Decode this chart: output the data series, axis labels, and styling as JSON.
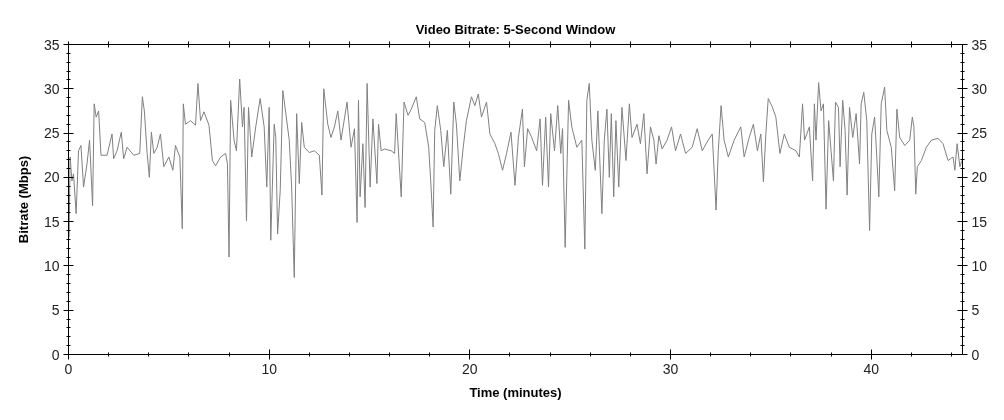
{
  "chart_data": {
    "type": "line",
    "title": "Video Bitrate: 5-Second Window",
    "xlabel": "Time (minutes)",
    "ylabel": "Bitrate (Mbps)",
    "xlim": [
      0,
      44.55
    ],
    "ylim": [
      0,
      35
    ],
    "y2lim": [
      0,
      35
    ],
    "xticks": [
      0,
      {
        "value": 2,
        "label": null
      },
      {
        "value": 4,
        "label": null
      },
      {
        "value": 6,
        "label": null
      },
      {
        "value": 8,
        "label": null
      },
      10,
      {
        "value": 12,
        "label": null
      },
      {
        "value": 14,
        "label": null
      },
      {
        "value": 16,
        "label": null
      },
      {
        "value": 18,
        "label": null
      },
      20,
      {
        "value": 22,
        "label": null
      },
      {
        "value": 24,
        "label": null
      },
      {
        "value": 26,
        "label": null
      },
      {
        "value": 28,
        "label": null
      },
      30,
      {
        "value": 32,
        "label": null
      },
      {
        "value": 34,
        "label": null
      },
      {
        "value": 36,
        "label": null
      },
      {
        "value": 38,
        "label": null
      },
      40,
      {
        "value": 42,
        "label": null
      },
      {
        "value": 44,
        "label": null
      }
    ],
    "yticks": [
      0,
      {
        "value": 1,
        "label": null
      },
      {
        "value": 2,
        "label": null
      },
      {
        "value": 3,
        "label": null
      },
      {
        "value": 4,
        "label": null
      },
      5,
      {
        "value": 6,
        "label": null
      },
      {
        "value": 7,
        "label": null
      },
      {
        "value": 8,
        "label": null
      },
      {
        "value": 9,
        "label": null
      },
      10,
      {
        "value": 11,
        "label": null
      },
      {
        "value": 12,
        "label": null
      },
      {
        "value": 13,
        "label": null
      },
      {
        "value": 14,
        "label": null
      },
      15,
      {
        "value": 16,
        "label": null
      },
      {
        "value": 17,
        "label": null
      },
      {
        "value": 18,
        "label": null
      },
      {
        "value": 19,
        "label": null
      },
      20,
      {
        "value": 21,
        "label": null
      },
      {
        "value": 22,
        "label": null
      },
      {
        "value": 23,
        "label": null
      },
      {
        "value": 24,
        "label": null
      },
      25,
      {
        "value": 26,
        "label": null
      },
      {
        "value": 27,
        "label": null
      },
      {
        "value": 28,
        "label": null
      },
      {
        "value": 29,
        "label": null
      },
      30,
      {
        "value": 31,
        "label": null
      },
      {
        "value": 32,
        "label": null
      },
      {
        "value": 33,
        "label": null
      },
      {
        "value": 34,
        "label": null
      },
      35
    ],
    "y2ticks": [
      0,
      {
        "value": 1,
        "label": null
      },
      {
        "value": 2,
        "label": null
      },
      {
        "value": 3,
        "label": null
      },
      {
        "value": 4,
        "label": null
      },
      5,
      {
        "value": 6,
        "label": null
      },
      {
        "value": 7,
        "label": null
      },
      {
        "value": 8,
        "label": null
      },
      {
        "value": 9,
        "label": null
      },
      10,
      {
        "value": 11,
        "label": null
      },
      {
        "value": 12,
        "label": null
      },
      {
        "value": 13,
        "label": null
      },
      {
        "value": 14,
        "label": null
      },
      15,
      {
        "value": 16,
        "label": null
      },
      {
        "value": 17,
        "label": null
      },
      {
        "value": 18,
        "label": null
      },
      {
        "value": 19,
        "label": null
      },
      20,
      {
        "value": 21,
        "label": null
      },
      {
        "value": 22,
        "label": null
      },
      {
        "value": 23,
        "label": null
      },
      {
        "value": 24,
        "label": null
      },
      25,
      {
        "value": 26,
        "label": null
      },
      {
        "value": 27,
        "label": null
      },
      {
        "value": 28,
        "label": null
      },
      {
        "value": 29,
        "label": null
      },
      30,
      {
        "value": 31,
        "label": null
      },
      {
        "value": 32,
        "label": null
      },
      {
        "value": 33,
        "label": null
      },
      {
        "value": 34,
        "label": null
      },
      35
    ],
    "grid": false,
    "x": [
      0.03,
      0.08,
      0.17,
      0.25,
      0.38,
      0.5,
      0.62,
      0.75,
      0.92,
      1.05,
      1.2,
      1.28,
      1.38,
      1.5,
      1.62,
      1.92,
      2.17,
      2.25,
      2.42,
      2.63,
      2.75,
      2.92,
      3.25,
      3.55,
      3.68,
      3.78,
      3.92,
      4.03,
      4.13,
      4.25,
      4.42,
      4.58,
      4.75,
      5.0,
      5.2,
      5.33,
      5.55,
      5.67,
      5.72,
      5.83,
      6.08,
      6.33,
      6.45,
      6.58,
      6.75,
      7.0,
      7.17,
      7.33,
      7.58,
      7.83,
      7.92,
      8.0,
      8.08,
      8.25,
      8.37,
      8.53,
      8.67,
      8.75,
      8.87,
      8.97,
      9.13,
      9.33,
      9.55,
      9.75,
      9.88,
      10.0,
      10.08,
      10.25,
      10.33,
      10.42,
      10.55,
      10.68,
      10.83,
      11.0,
      11.12,
      11.25,
      11.37,
      11.5,
      11.62,
      11.75,
      12.0,
      12.25,
      12.5,
      12.63,
      12.72,
      12.92,
      13.08,
      13.25,
      13.42,
      13.58,
      13.88,
      14.08,
      14.25,
      14.38,
      14.45,
      14.53,
      14.67,
      14.78,
      14.88,
      15.03,
      15.17,
      15.37,
      15.45,
      15.58,
      15.75,
      16.08,
      16.25,
      16.33,
      16.58,
      16.72,
      16.92,
      17.08,
      17.33,
      17.5,
      17.75,
      17.95,
      18.05,
      18.17,
      18.25,
      18.38,
      18.55,
      18.7,
      18.88,
      19.05,
      19.2,
      19.33,
      19.5,
      19.67,
      19.83,
      20.08,
      20.25,
      20.42,
      20.58,
      20.83,
      21.0,
      21.25,
      21.42,
      21.63,
      21.83,
      22.05,
      22.25,
      22.42,
      22.62,
      22.72,
      22.88,
      23.08,
      23.33,
      23.5,
      23.62,
      23.78,
      23.92,
      24.03,
      24.22,
      24.38,
      24.53,
      24.62,
      24.75,
      24.92,
      25.08,
      25.33,
      25.58,
      25.73,
      25.83,
      25.95,
      26.08,
      26.25,
      26.38,
      26.58,
      26.7,
      26.83,
      26.95,
      27.05,
      27.17,
      27.28,
      27.42,
      27.58,
      27.78,
      27.95,
      28.08,
      28.33,
      28.5,
      28.67,
      28.83,
      29.0,
      29.17,
      29.28,
      29.42,
      29.58,
      29.83,
      30.05,
      30.25,
      30.5,
      30.75,
      31.08,
      31.33,
      31.58,
      31.88,
      32.08,
      32.27,
      32.38,
      32.52,
      32.67,
      32.88,
      33.17,
      33.5,
      33.67,
      33.92,
      34.13,
      34.33,
      34.5,
      34.63,
      34.75,
      34.87,
      35.08,
      35.25,
      35.45,
      35.67,
      35.92,
      36.25,
      36.42,
      36.58,
      36.68,
      36.92,
      37.08,
      37.17,
      37.25,
      37.38,
      37.5,
      37.62,
      37.75,
      37.88,
      38.0,
      38.12,
      38.22,
      38.37,
      38.45,
      38.58,
      38.7,
      38.8,
      38.92,
      39.08,
      39.25,
      39.42,
      39.5,
      39.63,
      39.78,
      39.92,
      40.03,
      40.17,
      40.28,
      40.38,
      40.5,
      40.67,
      40.78,
      41.0,
      41.17,
      41.28,
      41.42,
      41.67,
      41.92,
      42.05,
      42.13,
      42.22,
      42.3,
      42.5,
      42.75,
      43.0,
      43.33,
      43.58,
      43.83,
      44.08,
      44.17,
      44.28,
      44.42,
      44.52
    ],
    "series": [
      {
        "color": "#808080",
        "values": [
          13.2,
          22.3,
          19.6,
          20.4,
          15.9,
          23.0,
          23.6,
          18.9,
          21.5,
          24.2,
          16.8,
          28.3,
          26.8,
          27.5,
          22.5,
          22.5,
          24.9,
          22.1,
          23.0,
          25.1,
          22.1,
          23.4,
          22.5,
          22.7,
          29.1,
          27.5,
          22.7,
          20.0,
          25.1,
          22.7,
          23.4,
          24.9,
          21.2,
          22.3,
          20.8,
          23.6,
          22.3,
          14.2,
          28.3,
          26.0,
          26.4,
          25.9,
          30.6,
          26.4,
          27.4,
          25.9,
          21.9,
          21.3,
          22.3,
          22.7,
          21.5,
          11.0,
          28.7,
          24.2,
          23.0,
          31.1,
          25.7,
          27.9,
          15.1,
          27.9,
          22.3,
          25.7,
          28.9,
          25.7,
          18.9,
          27.9,
          12.9,
          26.0,
          24.5,
          13.6,
          18.5,
          29.8,
          27.2,
          24.2,
          18.9,
          8.7,
          27.2,
          19.3,
          26.2,
          23.4,
          22.8,
          23.0,
          22.5,
          18.0,
          30.0,
          26.0,
          24.5,
          25.7,
          27.5,
          24.2,
          28.5,
          23.4,
          25.5,
          14.9,
          28.7,
          17.8,
          23.8,
          16.6,
          30.6,
          18.9,
          26.6,
          19.3,
          26.0,
          23.0,
          23.2,
          23.0,
          22.7,
          27.2,
          17.8,
          28.5,
          27.0,
          27.7,
          29.1,
          26.6,
          26.2,
          23.4,
          19.6,
          14.4,
          25.3,
          28.1,
          25.3,
          21.2,
          25.3,
          18.1,
          28.5,
          26.0,
          19.6,
          23.4,
          26.4,
          29.1,
          28.1,
          29.4,
          26.8,
          28.5,
          24.9,
          23.8,
          22.7,
          20.8,
          22.7,
          25.1,
          19.1,
          24.5,
          27.7,
          21.2,
          25.5,
          24.5,
          23.0,
          26.6,
          19.1,
          26.8,
          18.9,
          27.2,
          23.0,
          28.1,
          22.7,
          25.5,
          12.1,
          28.7,
          25.7,
          23.4,
          24.2,
          11.9,
          28.7,
          30.6,
          24.2,
          20.8,
          27.5,
          15.9,
          24.2,
          27.7,
          20.0,
          27.2,
          17.8,
          26.4,
          18.9,
          27.9,
          21.9,
          28.3,
          24.5,
          26.0,
          23.8,
          27.2,
          20.4,
          25.7,
          24.2,
          21.5,
          24.7,
          23.2,
          24.2,
          25.7,
          23.0,
          24.9,
          22.7,
          23.4,
          25.5,
          23.0,
          24.2,
          24.9,
          16.3,
          23.0,
          28.1,
          24.2,
          22.3,
          24.2,
          25.7,
          22.3,
          24.5,
          26.0,
          23.0,
          24.9,
          19.5,
          24.9,
          28.9,
          27.9,
          26.8,
          22.7,
          24.9,
          23.4,
          23.0,
          22.3,
          28.3,
          24.2,
          25.7,
          19.6,
          28.3,
          24.2,
          30.7,
          27.5,
          28.3,
          16.4,
          26.4,
          23.0,
          19.6,
          28.5,
          27.9,
          21.2,
          28.7,
          25.3,
          18.0,
          27.9,
          24.5,
          27.2,
          21.5,
          28.3,
          29.6,
          26.4,
          14.0,
          24.9,
          26.8,
          22.3,
          17.8,
          28.3,
          30.2,
          25.3,
          23.4,
          18.5,
          27.7,
          24.5,
          23.6,
          24.2,
          26.8,
          25.7,
          18.1,
          21.2,
          21.9,
          23.4,
          24.2,
          24.4,
          23.8,
          21.9,
          22.3,
          20.8,
          23.8,
          21.2,
          21.9
        ]
      }
    ]
  }
}
